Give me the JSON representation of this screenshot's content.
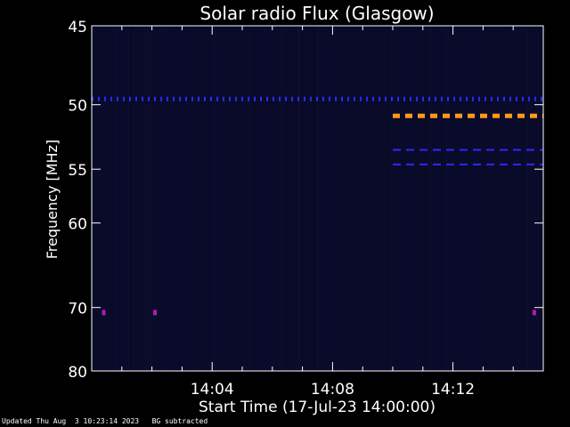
{
  "chart_data": {
    "type": "heatmap",
    "title": "Solar radio Flux (Glasgow)",
    "xlabel": "Start Time (17-Jul-23 14:00:00)",
    "ylabel": "Frequency [MHz]",
    "x_unit": "minutes",
    "xlim": [
      0,
      15
    ],
    "ylim": [
      80,
      45
    ],
    "y_scale": "reciprocal",
    "x_ticks": [
      {
        "value": 4,
        "label": "14:04"
      },
      {
        "value": 8,
        "label": "14:08"
      },
      {
        "value": 12,
        "label": "14:12"
      }
    ],
    "y_ticks": [
      {
        "value": 45,
        "label": "45"
      },
      {
        "value": 50,
        "label": "50"
      },
      {
        "value": 55,
        "label": "55"
      },
      {
        "value": 60,
        "label": "60"
      },
      {
        "value": 70,
        "label": "70"
      },
      {
        "value": 80,
        "label": "80"
      }
    ],
    "background_color": "#0a0a2a",
    "features": [
      {
        "name": "50 MHz carrier",
        "freq_mhz": 49.6,
        "x_start": 0.0,
        "x_end": 15.0,
        "color": "#2a2aff"
      },
      {
        "name": "orange band",
        "freq_mhz": 50.8,
        "x_start": 10.0,
        "x_end": 15.0,
        "color": "#ff9a1a"
      },
      {
        "name": "53.5 MHz band",
        "freq_mhz": 53.4,
        "x_start": 10.0,
        "x_end": 15.0,
        "color": "#2a2aff"
      },
      {
        "name": "54.7 MHz band",
        "freq_mhz": 54.6,
        "x_start": 10.0,
        "x_end": 15.0,
        "color": "#2a2aff"
      }
    ],
    "spots": [
      {
        "x": 0.4,
        "freq_mhz": 70.7,
        "color": "#b01ab0"
      },
      {
        "x": 2.1,
        "freq_mhz": 70.7,
        "color": "#b01ab0"
      },
      {
        "x": 14.7,
        "freq_mhz": 70.7,
        "color": "#b01ab0"
      }
    ]
  },
  "footer": {
    "updated": "Updated Thu Aug  3 10:23:14 2023",
    "note": "BG subtracted"
  }
}
